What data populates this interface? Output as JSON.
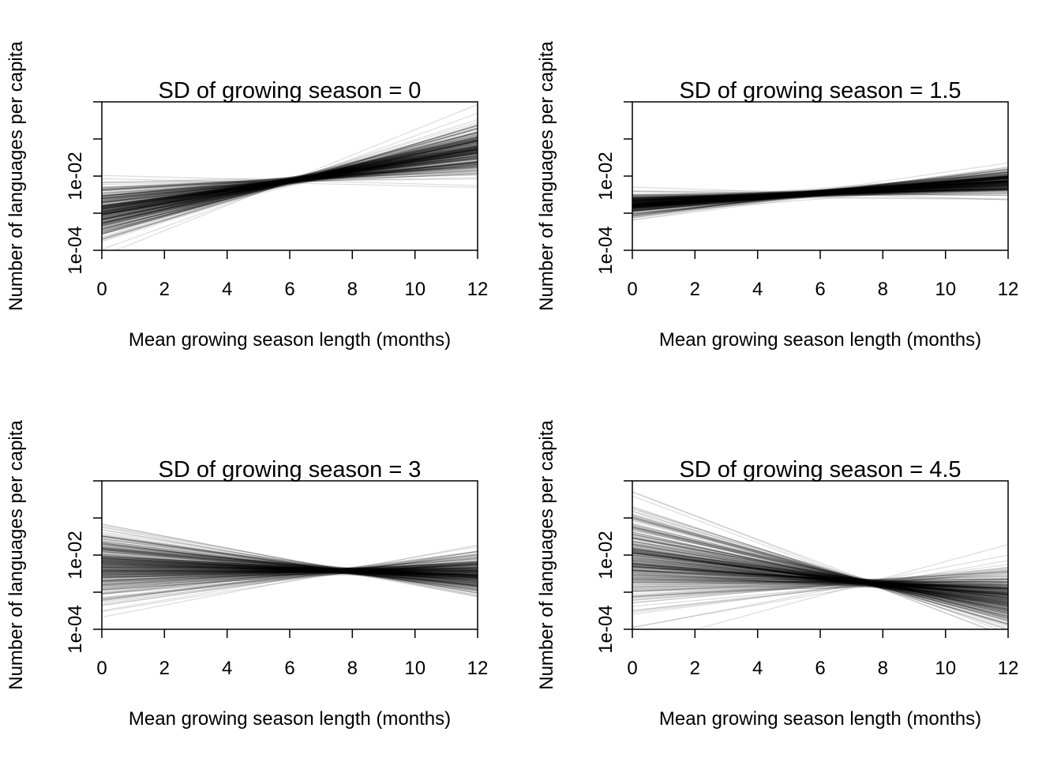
{
  "chart_data": [
    {
      "type": "line",
      "title": "SD of growing season = 0",
      "xlabel": "Mean growing season length (months)",
      "ylabel": "Number of languages per capita",
      "xlim": [
        0,
        12
      ],
      "xticks": [
        "0",
        "2",
        "4",
        "6",
        "8",
        "10",
        "12"
      ],
      "ylim": [
        0.0001,
        1
      ],
      "y_scale": "log",
      "yticks_labeled": [
        "1e-04",
        "1e-02"
      ],
      "yticks_unlabeled": [
        0.001,
        0.1,
        1
      ],
      "grid": false,
      "legend": "none",
      "line_color": "#000000",
      "series_count": 300,
      "series_summary": {
        "x": [
          0,
          12
        ],
        "mean_y": [
          0.0011,
          0.05
        ],
        "min_y": [
          0.0001,
          0.006
        ],
        "max_y": [
          0.006,
          0.3
        ],
        "pinch_x": 6.5
      }
    },
    {
      "type": "line",
      "title": "SD of growing season = 1.5",
      "xlabel": "Mean growing season length (months)",
      "ylabel": "Number of languages per capita",
      "xlim": [
        0,
        12
      ],
      "xticks": [
        "0",
        "2",
        "4",
        "6",
        "8",
        "10",
        "12"
      ],
      "ylim": [
        0.0001,
        1
      ],
      "y_scale": "log",
      "yticks_labeled": [
        "1e-04",
        "1e-02"
      ],
      "yticks_unlabeled": [
        0.001,
        0.1,
        1
      ],
      "grid": false,
      "legend": "none",
      "line_color": "#000000",
      "series_count": 300,
      "series_summary": {
        "x": [
          0,
          12
        ],
        "mean_y": [
          0.0017,
          0.007
        ],
        "min_y": [
          0.0008,
          0.003
        ],
        "max_y": [
          0.004,
          0.02
        ],
        "pinch_x": 6.5
      }
    },
    {
      "type": "line",
      "title": "SD of growing season = 3",
      "xlabel": "Mean growing season length (months)",
      "ylabel": "Number of languages per capita",
      "xlim": [
        0,
        12
      ],
      "xticks": [
        "0",
        "2",
        "4",
        "6",
        "8",
        "10",
        "12"
      ],
      "ylim": [
        0.0001,
        1
      ],
      "y_scale": "log",
      "yticks_labeled": [
        "1e-04",
        "1e-02"
      ],
      "yticks_unlabeled": [
        0.001,
        0.1,
        1
      ],
      "grid": false,
      "legend": "none",
      "line_color": "#000000",
      "series_count": 300,
      "series_summary": {
        "x": [
          0,
          12
        ],
        "mean_y": [
          0.005,
          0.0032
        ],
        "min_y": [
          0.0003,
          0.0005
        ],
        "max_y": [
          0.07,
          0.01
        ],
        "pinch_x": 8
      }
    },
    {
      "type": "line",
      "title": "SD of growing season = 4.5",
      "xlabel": "Mean growing season length (months)",
      "ylabel": "Number of languages per capita",
      "xlim": [
        0,
        12
      ],
      "xticks": [
        "0",
        "2",
        "4",
        "6",
        "8",
        "10",
        "12"
      ],
      "ylim": [
        0.0001,
        1
      ],
      "y_scale": "log",
      "yticks_labeled": [
        "1e-04",
        "1e-02"
      ],
      "yticks_unlabeled": [
        0.001,
        0.1,
        1
      ],
      "grid": false,
      "legend": "none",
      "line_color": "#000000",
      "series_count": 300,
      "series_summary": {
        "x": [
          0,
          12
        ],
        "mean_y": [
          0.009,
          0.0007
        ],
        "min_y": [
          0.00015,
          0.0001
        ],
        "max_y": [
          0.25,
          0.008
        ],
        "pinch_x": 7.5
      }
    }
  ]
}
